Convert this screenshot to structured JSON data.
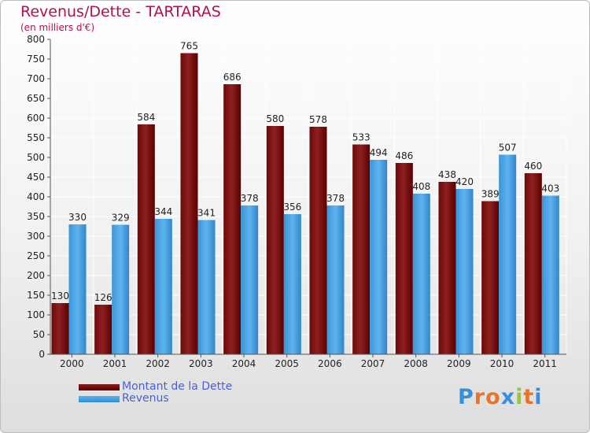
{
  "header": {
    "title": "Revenus/Dette - TARTARAS",
    "subtitle": "(en milliers d'€)"
  },
  "colors": {
    "dette": "#7a0f0f",
    "revenus": "#4aa3e3",
    "title": "#b5113e"
  },
  "chart_data": {
    "type": "bar",
    "categories": [
      "2000",
      "2001",
      "2002",
      "2003",
      "2004",
      "2005",
      "2006",
      "2007",
      "2008",
      "2009",
      "2010",
      "2011"
    ],
    "series": [
      {
        "name": "Montant de la Dette",
        "values": [
          130,
          126,
          584,
          765,
          686,
          580,
          578,
          533,
          486,
          438,
          389,
          460
        ]
      },
      {
        "name": "Revenus",
        "values": [
          330,
          329,
          344,
          341,
          378,
          356,
          378,
          494,
          408,
          420,
          507,
          403
        ]
      }
    ],
    "title": "Revenus/Dette - TARTARAS",
    "subtitle": "(en milliers d'€)",
    "ylim": [
      0,
      800
    ],
    "yticks": [
      0,
      50,
      100,
      150,
      200,
      250,
      300,
      350,
      400,
      450,
      500,
      550,
      600,
      650,
      700,
      750,
      800
    ],
    "grid": true,
    "legend_position": "bottom-left"
  },
  "legend": {
    "items": [
      {
        "label": "Montant de la Dette"
      },
      {
        "label": "Revenus"
      }
    ]
  },
  "brand": {
    "logo_text": "Proxiti"
  }
}
